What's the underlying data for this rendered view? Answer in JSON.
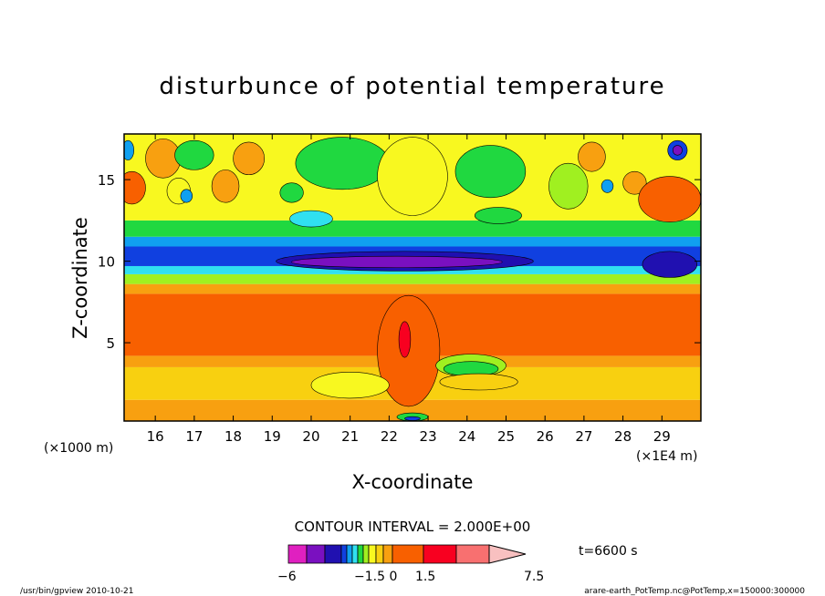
{
  "chart_data": {
    "type": "heatmap",
    "title": "disturbunce of potential temperature",
    "xlabel": "X-coordinate",
    "ylabel": "Z-coordinate",
    "x_unit_left": "(×1000 m)",
    "x_unit_right": "(×1E4 m)",
    "x_range": [
      15.2,
      30.0
    ],
    "y_range": [
      0.2,
      17.8
    ],
    "x_ticks": [
      "16",
      "17",
      "18",
      "19",
      "20",
      "21",
      "22",
      "23",
      "24",
      "25",
      "26",
      "27",
      "28",
      "29"
    ],
    "x_tick_values": [
      16,
      17,
      18,
      19,
      20,
      21,
      22,
      23,
      24,
      25,
      26,
      27,
      28,
      29
    ],
    "y_ticks": [
      "5",
      "10",
      "15"
    ],
    "y_tick_values": [
      5,
      10,
      15
    ],
    "contour_interval": "CONTOUR INTERVAL = 2.000E+00",
    "time": "t=6600 s",
    "colorbar_labels": [
      "−6",
      "−1.5 0",
      "1.5",
      "7.5"
    ],
    "colorbar_colors": [
      "#e020c0",
      "#7a10c0",
      "#2010b0",
      "#1040e0",
      "#10a0f0",
      "#30e0f0",
      "#20d840",
      "#a0f020",
      "#f8f820",
      "#f8d010",
      "#f8a010",
      "#f86000",
      "#f80020",
      "#f87070",
      "#f8c0c0"
    ],
    "levels": [
      -6,
      -4.5,
      -3.5,
      -2.5,
      -1.5,
      -1,
      -0.5,
      0,
      0.5,
      1,
      1.5,
      3,
      4.5,
      6,
      7.5
    ],
    "bands": [
      {
        "zmin": 0.2,
        "zmax": 1.5,
        "color": "#f8a010"
      },
      {
        "zmin": 1.5,
        "zmax": 3.5,
        "color": "#f8d010"
      },
      {
        "zmin": 3.5,
        "zmax": 4.2,
        "color": "#f8a010"
      },
      {
        "zmin": 4.2,
        "zmax": 8.0,
        "color": "#f86000"
      },
      {
        "zmin": 8.0,
        "zmax": 8.6,
        "color": "#f8a010"
      },
      {
        "zmin": 8.6,
        "zmax": 9.2,
        "color": "#a0f020"
      },
      {
        "zmin": 9.2,
        "zmax": 9.7,
        "color": "#30e0f0"
      },
      {
        "zmin": 9.7,
        "zmax": 10.9,
        "color": "#1040e0"
      },
      {
        "zmin": 10.9,
        "zmax": 11.5,
        "color": "#10a0f0"
      },
      {
        "zmin": 11.5,
        "zmax": 12.5,
        "color": "#20d840"
      },
      {
        "zmin": 12.5,
        "zmax": 17.8,
        "color": "#f8f820"
      }
    ]
  },
  "footer": {
    "left": "/usr/bin/gpview   2010-10-21",
    "right": "arare-earth_PotTemp.nc@PotTemp,x=150000:300000"
  }
}
